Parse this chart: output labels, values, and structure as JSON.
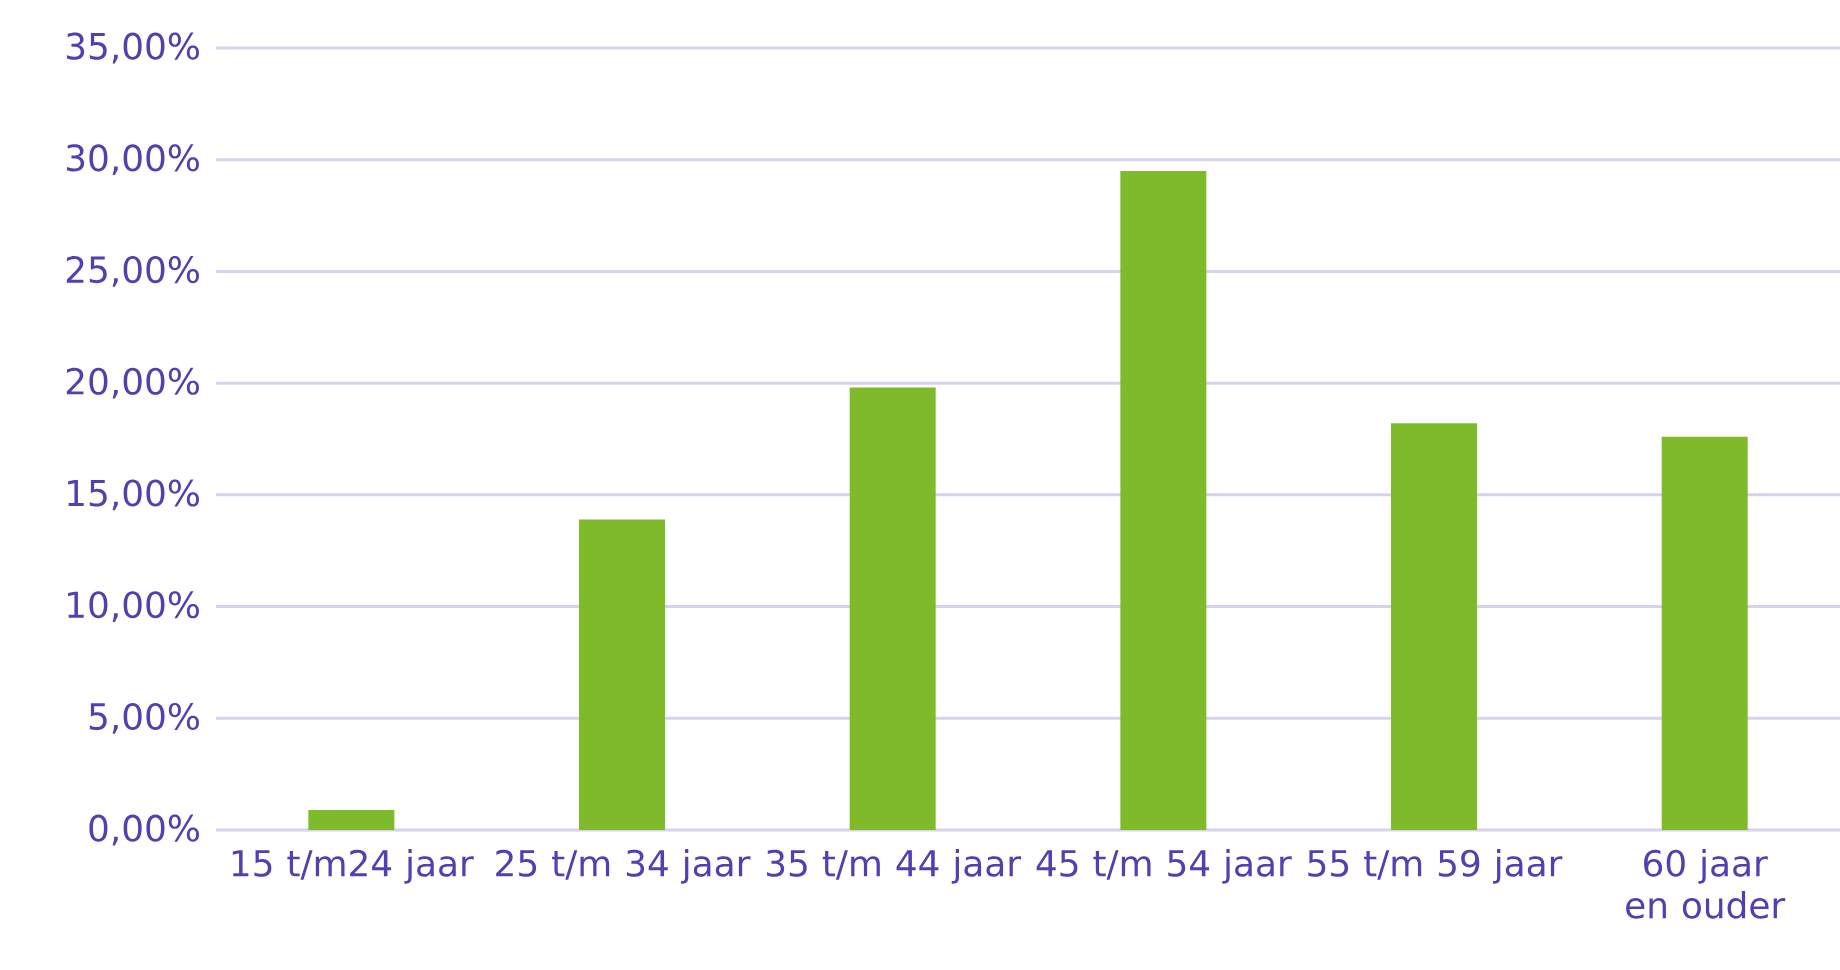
{
  "chart_data": {
    "type": "bar",
    "categories": [
      "15 t/m24 jaar",
      "25 t/m 34 jaar",
      "35 t/m 44 jaar",
      "45 t/m 54 jaar",
      "55 t/m 59 jaar",
      "60 jaar en ouder"
    ],
    "values": [
      0.9,
      13.9,
      19.8,
      29.5,
      18.2,
      17.6
    ],
    "color": "#7fba2a",
    "ylim": [
      0,
      35
    ],
    "yticks": [
      {
        "value": 0,
        "label": "0,00%"
      },
      {
        "value": 5,
        "label": "5,00%"
      },
      {
        "value": 10,
        "label": "10,00%"
      },
      {
        "value": 15,
        "label": "15,00%"
      },
      {
        "value": 20,
        "label": "20,00%"
      },
      {
        "value": 25,
        "label": "25,00%"
      },
      {
        "value": 30,
        "label": "30,00%"
      },
      {
        "value": 35,
        "label": "35,00%"
      }
    ],
    "grid": "y"
  }
}
